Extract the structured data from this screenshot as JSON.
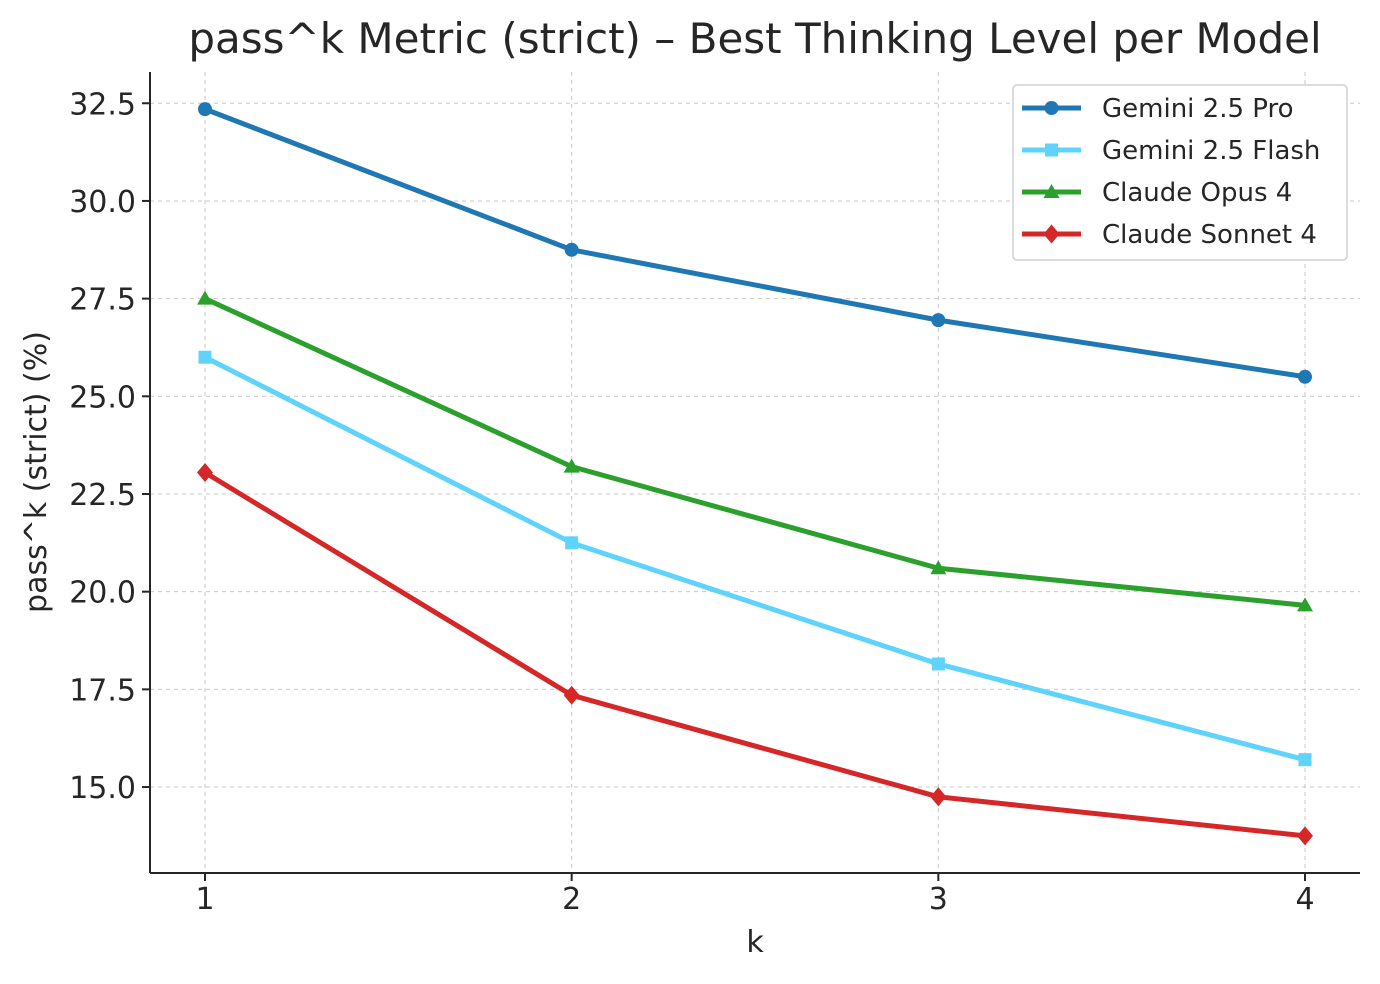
{
  "chart_data": {
    "type": "line",
    "title": "pass^k Metric (strict) – Best Thinking Level per Model",
    "xlabel": "k",
    "ylabel": "pass^k (strict) (%)",
    "x": [
      1,
      2,
      3,
      4
    ],
    "x_ticks": [
      "1",
      "2",
      "3",
      "4"
    ],
    "y_ticks": [
      "15.0",
      "17.5",
      "20.0",
      "22.5",
      "25.0",
      "27.5",
      "30.0",
      "32.5"
    ],
    "ylim": [
      12.8,
      33.3
    ],
    "xlim": [
      0.85,
      4.15
    ],
    "grid": true,
    "legend_position": "top-right",
    "series": [
      {
        "name": "Gemini 2.5 Pro",
        "values": [
          32.35,
          28.75,
          26.95,
          25.5
        ],
        "color": "#1f77b4",
        "marker": "circle"
      },
      {
        "name": "Gemini 2.5 Flash",
        "values": [
          26.0,
          21.25,
          18.15,
          15.7
        ],
        "color": "#5fd3fb",
        "marker": "square"
      },
      {
        "name": "Claude Opus 4",
        "values": [
          27.5,
          23.2,
          20.6,
          19.65
        ],
        "color": "#2ca02c",
        "marker": "triangle"
      },
      {
        "name": "Claude Sonnet 4",
        "values": [
          23.05,
          17.35,
          14.75,
          13.75
        ],
        "color": "#d62728",
        "marker": "diamond"
      }
    ]
  }
}
